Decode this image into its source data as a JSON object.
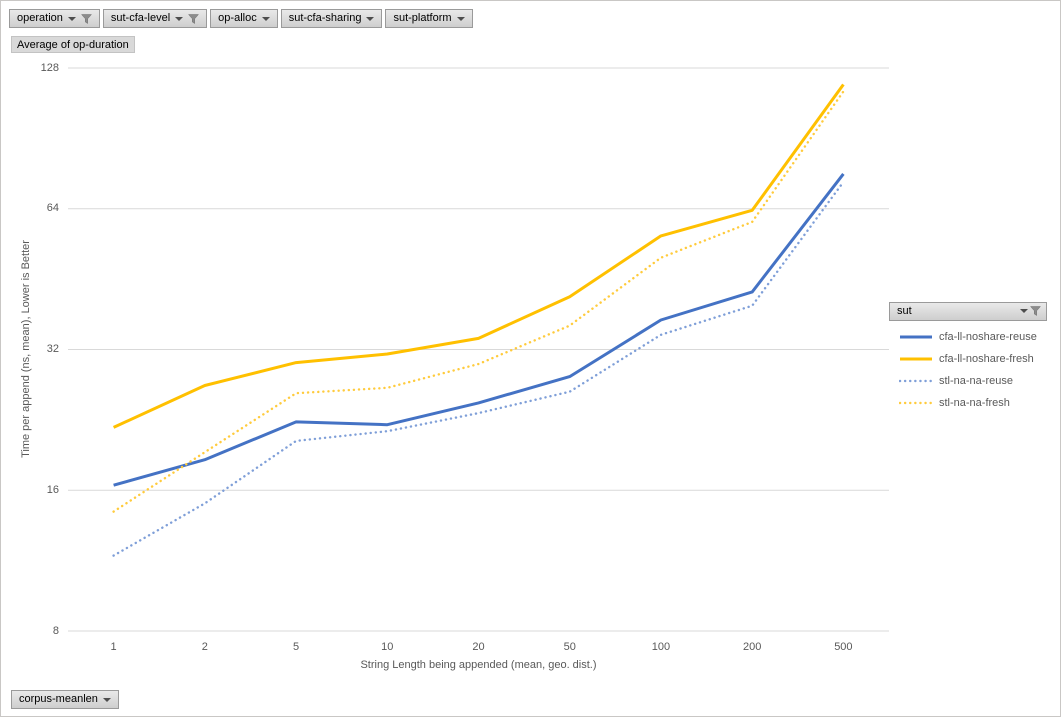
{
  "field_buttons": {
    "top": [
      {
        "label": "operation",
        "filtered": true
      },
      {
        "label": "sut-cfa-level",
        "filtered": true
      },
      {
        "label": "op-alloc",
        "filtered": false
      },
      {
        "label": "sut-cfa-sharing",
        "filtered": false
      },
      {
        "label": "sut-platform",
        "filtered": false
      }
    ],
    "value_button": "Average of op-duration",
    "axis_button": "corpus-meanlen",
    "legend_button": {
      "label": "sut",
      "filtered": true
    }
  },
  "chart_data": {
    "type": "line",
    "title": "",
    "xlabel": "String Length being appended (mean, geo. dist.)",
    "ylabel": "Time per append (ns, mean),  Lower is Better",
    "x_scale": "category",
    "y_scale": "log2",
    "ylim": [
      8,
      128
    ],
    "y_ticks": [
      128,
      64,
      32,
      16,
      8
    ],
    "categories": [
      "1",
      "2",
      "5",
      "10",
      "20",
      "50",
      "100",
      "200",
      "500"
    ],
    "grid": "horizontal",
    "grid_color": "#d9d9d9",
    "axis_text_color": "#595959",
    "legend_position": "right",
    "legend_title": "sut",
    "series": [
      {
        "name": "cfa-ll-noshare-reuse",
        "color": "#4472c4",
        "dash": "solid",
        "values": [
          16.4,
          18.6,
          22.4,
          22.1,
          24.6,
          28.0,
          37.0,
          42.5,
          76.0
        ]
      },
      {
        "name": "cfa-ll-noshare-fresh",
        "color": "#ffc000",
        "dash": "solid",
        "values": [
          21.8,
          26.8,
          30.0,
          31.3,
          33.8,
          41.5,
          56.0,
          63.5,
          118.0
        ]
      },
      {
        "name": "stl-na-na-reuse",
        "color": "#7f9fd8",
        "dash": "dotted",
        "values": [
          11.6,
          15.0,
          20.4,
          21.4,
          23.4,
          26.0,
          34.4,
          39.7,
          73.0
        ]
      },
      {
        "name": "stl-na-na-fresh",
        "color": "#ffcb3d",
        "dash": "dotted",
        "values": [
          14.4,
          19.3,
          25.8,
          26.5,
          29.8,
          36.0,
          50.3,
          60.0,
          114.0
        ]
      }
    ]
  }
}
